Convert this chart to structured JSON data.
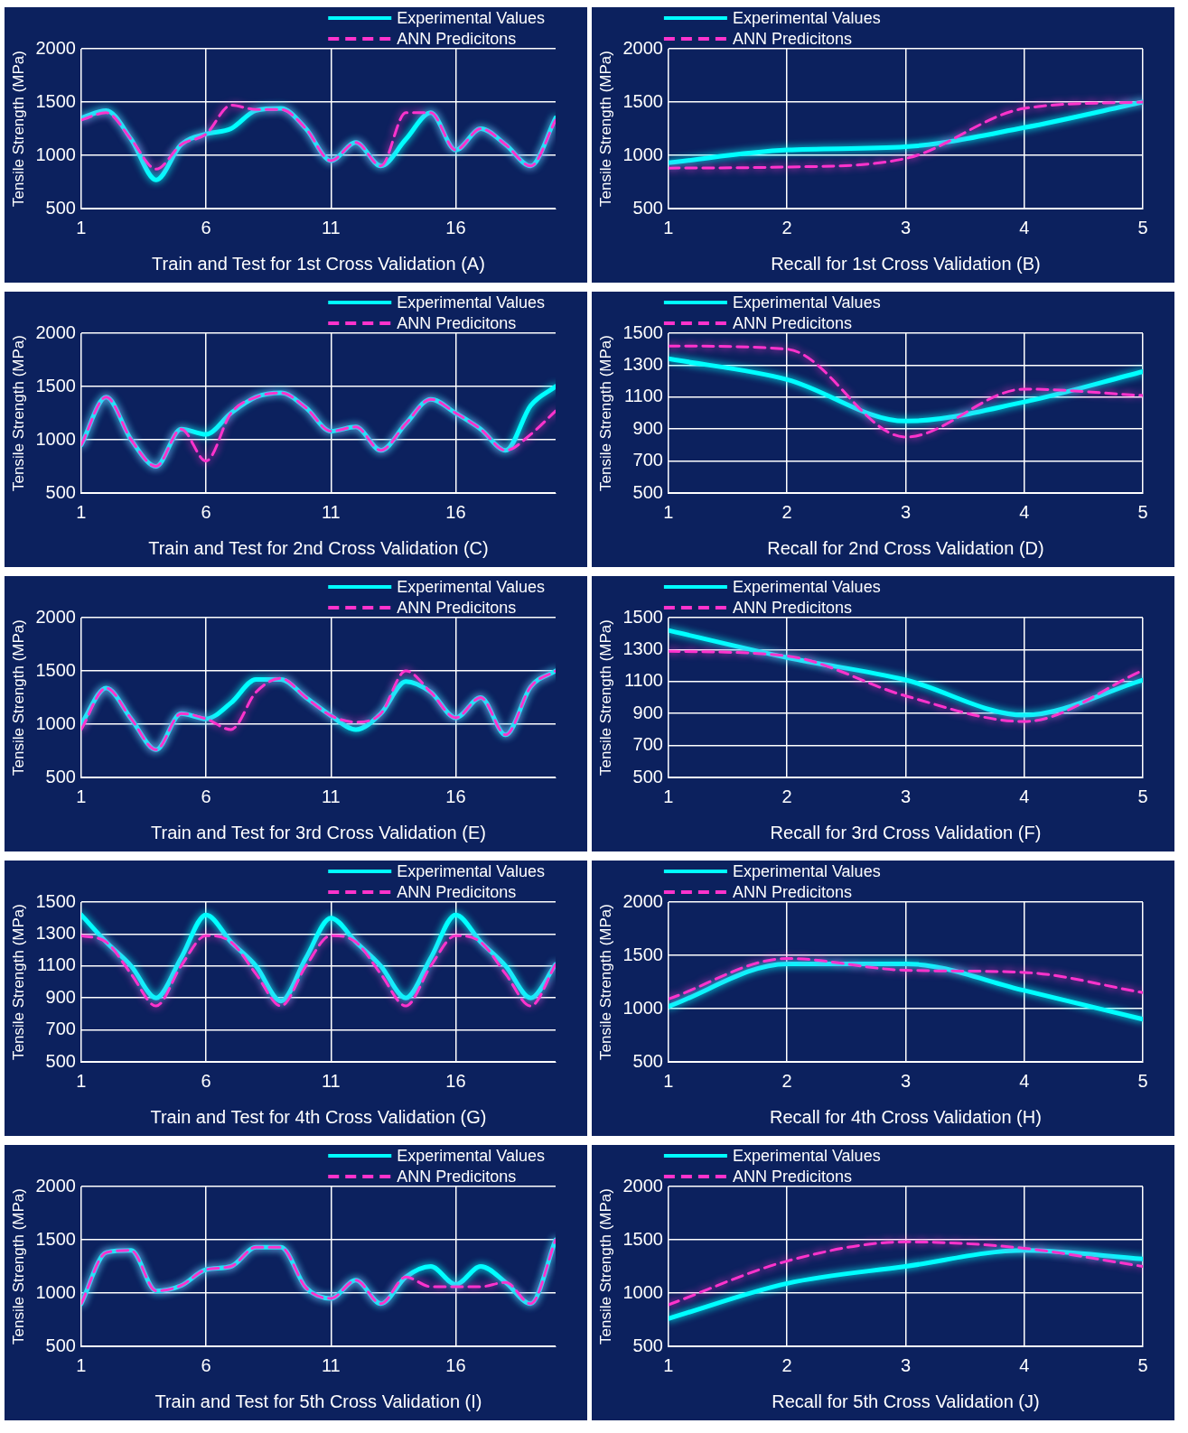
{
  "chart_data": [
    {
      "type": "line",
      "xlabel": "Train and Test for 1st Cross Validation (A)",
      "ylabel": "Tensile Strength (MPa)",
      "x": [
        1,
        2,
        3,
        4,
        5,
        6,
        7,
        8,
        9,
        10,
        11,
        12,
        13,
        14,
        15,
        16,
        17,
        18,
        19,
        20
      ],
      "xlim": [
        1,
        20
      ],
      "xticks": [
        1,
        6,
        11,
        16
      ],
      "ylim": [
        500,
        2000
      ],
      "yticks": [
        500,
        1000,
        1500,
        2000
      ],
      "grid": true,
      "legend": "top right",
      "marker": "none",
      "series": [
        {
          "name": "Experimental Values",
          "color": "#00ffff",
          "line_style": "solid",
          "values": [
            1350,
            1420,
            1150,
            770,
            1100,
            1200,
            1250,
            1420,
            1440,
            1250,
            950,
            1120,
            900,
            1150,
            1400,
            1050,
            1250,
            1100,
            900,
            1350
          ]
        },
        {
          "name": "ANN Predicitons",
          "color": "#ff33cc",
          "line_style": "dashed",
          "values": [
            1330,
            1400,
            1150,
            870,
            1100,
            1200,
            1470,
            1430,
            1430,
            1250,
            950,
            1120,
            900,
            1400,
            1400,
            1050,
            1250,
            1100,
            900,
            1330
          ]
        }
      ]
    },
    {
      "type": "line",
      "xlabel": "Recall for 1st Cross Validation (B)",
      "ylabel": "Tensile Strength (MPa)",
      "x": [
        1,
        2,
        3,
        4,
        5
      ],
      "xlim": [
        1,
        5
      ],
      "xticks": [
        1,
        2,
        3,
        4,
        5
      ],
      "ylim": [
        500,
        2000
      ],
      "yticks": [
        500,
        1000,
        1500,
        2000
      ],
      "grid": true,
      "legend": "top left",
      "marker": "none",
      "series": [
        {
          "name": "Experimental Values",
          "color": "#00ffff",
          "line_style": "solid",
          "values": [
            930,
            1050,
            1080,
            1260,
            1500
          ]
        },
        {
          "name": "ANN Predicitons",
          "color": "#ff33cc",
          "line_style": "dashed",
          "values": [
            880,
            890,
            970,
            1440,
            1500
          ]
        }
      ]
    },
    {
      "type": "line",
      "xlabel": "Train and Test for 2nd Cross Validation (C)",
      "ylabel": "Tensile Strength (MPa)",
      "x": [
        1,
        2,
        3,
        4,
        5,
        6,
        7,
        8,
        9,
        10,
        11,
        12,
        13,
        14,
        15,
        16,
        17,
        18,
        19,
        20
      ],
      "xlim": [
        1,
        20
      ],
      "xticks": [
        1,
        6,
        11,
        16
      ],
      "ylim": [
        500,
        2000
      ],
      "yticks": [
        500,
        1000,
        1500,
        2000
      ],
      "grid": true,
      "legend": "top right",
      "marker": "none",
      "series": [
        {
          "name": "Experimental Values",
          "color": "#00ffff",
          "line_style": "solid",
          "values": [
            950,
            1400,
            1000,
            750,
            1100,
            1050,
            1250,
            1400,
            1440,
            1300,
            1080,
            1120,
            900,
            1150,
            1380,
            1250,
            1100,
            900,
            1320,
            1500
          ]
        },
        {
          "name": "ANN Predicitons",
          "color": "#ff33cc",
          "line_style": "dashed",
          "values": [
            950,
            1400,
            1000,
            750,
            1100,
            800,
            1250,
            1400,
            1440,
            1300,
            1080,
            1120,
            900,
            1150,
            1380,
            1250,
            1100,
            900,
            1050,
            1270
          ]
        }
      ]
    },
    {
      "type": "line",
      "xlabel": "Recall for 2nd Cross Validation (D)",
      "ylabel": "Tensile Strength (MPa)",
      "x": [
        1,
        2,
        3,
        4,
        5
      ],
      "xlim": [
        1,
        5
      ],
      "xticks": [
        1,
        2,
        3,
        4,
        5
      ],
      "ylim": [
        500,
        1500
      ],
      "yticks": [
        500,
        700,
        900,
        1100,
        1300,
        1500
      ],
      "grid": true,
      "legend": "top left",
      "marker": "none",
      "series": [
        {
          "name": "Experimental Values",
          "color": "#00ffff",
          "line_style": "solid",
          "values": [
            1340,
            1210,
            950,
            1070,
            1260
          ]
        },
        {
          "name": "ANN Predicitons",
          "color": "#ff33cc",
          "line_style": "dashed",
          "values": [
            1420,
            1400,
            850,
            1150,
            1110
          ]
        }
      ]
    },
    {
      "type": "line",
      "xlabel": "Train and Test for 3rd Cross Validation (E)",
      "ylabel": "Tensile Strength (MPa)",
      "x": [
        1,
        2,
        3,
        4,
        5,
        6,
        7,
        8,
        9,
        10,
        11,
        12,
        13,
        14,
        15,
        16,
        17,
        18,
        19,
        20
      ],
      "xlim": [
        1,
        20
      ],
      "xticks": [
        1,
        6,
        11,
        16
      ],
      "ylim": [
        500,
        2000
      ],
      "yticks": [
        500,
        1000,
        1500,
        2000
      ],
      "grid": true,
      "legend": "top right",
      "marker": "none",
      "series": [
        {
          "name": "Experimental Values",
          "color": "#00ffff",
          "line_style": "solid",
          "values": [
            1000,
            1340,
            1050,
            760,
            1100,
            1050,
            1200,
            1420,
            1420,
            1250,
            1080,
            950,
            1100,
            1400,
            1300,
            1060,
            1250,
            900,
            1350,
            1500
          ]
        },
        {
          "name": "ANN Predicitons",
          "color": "#ff33cc",
          "line_style": "dashed",
          "values": [
            950,
            1340,
            1050,
            760,
            1100,
            1050,
            950,
            1300,
            1430,
            1250,
            1080,
            1020,
            1100,
            1500,
            1300,
            1060,
            1250,
            900,
            1350,
            1500
          ]
        }
      ]
    },
    {
      "type": "line",
      "xlabel": "Recall for 3rd Cross Validation (F)",
      "ylabel": "Tensile Strength (MPa)",
      "x": [
        1,
        2,
        3,
        4,
        5
      ],
      "xlim": [
        1,
        5
      ],
      "xticks": [
        1,
        2,
        3,
        4,
        5
      ],
      "ylim": [
        500,
        1500
      ],
      "yticks": [
        500,
        700,
        900,
        1100,
        1300,
        1500
      ],
      "grid": true,
      "legend": "top left",
      "marker": "none",
      "series": [
        {
          "name": "Experimental Values",
          "color": "#00ffff",
          "line_style": "solid",
          "values": [
            1420,
            1250,
            1110,
            890,
            1110
          ]
        },
        {
          "name": "ANN Predicitons",
          "color": "#ff33cc",
          "line_style": "dashed",
          "values": [
            1290,
            1260,
            1010,
            850,
            1170
          ]
        }
      ]
    },
    {
      "type": "line",
      "xlabel": "Train and Test for 4th Cross Validation (G)",
      "ylabel": "Tensile Strength (MPa)",
      "x": [
        1,
        2,
        3,
        4,
        5,
        6,
        7,
        8,
        9,
        10,
        11,
        12,
        13,
        14,
        15,
        16,
        17,
        18,
        19,
        20
      ],
      "xlim": [
        1,
        20
      ],
      "xticks": [
        1,
        6,
        11,
        16
      ],
      "ylim": [
        500,
        1500
      ],
      "yticks": [
        500,
        700,
        900,
        1100,
        1300,
        1500
      ],
      "grid": true,
      "legend": "top right",
      "marker": "none",
      "series": [
        {
          "name": "Experimental Values",
          "color": "#00ffff",
          "line_style": "solid",
          "values": [
            1420,
            1250,
            1100,
            900,
            1150,
            1420,
            1250,
            1100,
            880,
            1150,
            1400,
            1250,
            1100,
            900,
            1150,
            1420,
            1250,
            1100,
            900,
            1110
          ]
        },
        {
          "name": "ANN Predicitons",
          "color": "#ff33cc",
          "line_style": "dashed",
          "values": [
            1290,
            1250,
            1050,
            850,
            1100,
            1290,
            1250,
            1050,
            850,
            1100,
            1290,
            1250,
            1050,
            850,
            1100,
            1290,
            1250,
            1050,
            850,
            1110
          ]
        }
      ]
    },
    {
      "type": "line",
      "xlabel": "Recall for 4th Cross Validation (H)",
      "ylabel": "Tensile Strength (MPa)",
      "x": [
        1,
        2,
        3,
        4,
        5
      ],
      "xlim": [
        1,
        5
      ],
      "xticks": [
        1,
        2,
        3,
        4,
        5
      ],
      "ylim": [
        500,
        2000
      ],
      "yticks": [
        500,
        1000,
        1500,
        2000
      ],
      "grid": true,
      "legend": "top left",
      "marker": "none",
      "series": [
        {
          "name": "Experimental Values",
          "color": "#00ffff",
          "line_style": "solid",
          "values": [
            1020,
            1420,
            1420,
            1170,
            900
          ]
        },
        {
          "name": "ANN Predicitons",
          "color": "#ff33cc",
          "line_style": "dashed",
          "values": [
            1090,
            1470,
            1360,
            1340,
            1150
          ]
        }
      ]
    },
    {
      "type": "line",
      "xlabel": "Train and Test for 5th Cross Validation (I)",
      "ylabel": "Tensile Strength (MPa)",
      "x": [
        1,
        2,
        3,
        4,
        5,
        6,
        7,
        8,
        9,
        10,
        11,
        12,
        13,
        14,
        15,
        16,
        17,
        18,
        19,
        20
      ],
      "xlim": [
        1,
        20
      ],
      "xticks": [
        1,
        6,
        11,
        16
      ],
      "ylim": [
        500,
        2000
      ],
      "yticks": [
        500,
        1000,
        1500,
        2000
      ],
      "grid": true,
      "legend": "top right",
      "marker": "none",
      "series": [
        {
          "name": "Experimental Values",
          "color": "#00ffff",
          "line_style": "solid",
          "values": [
            900,
            1380,
            1400,
            1020,
            1070,
            1220,
            1250,
            1430,
            1430,
            1050,
            950,
            1120,
            900,
            1150,
            1250,
            1080,
            1250,
            1100,
            900,
            1500
          ]
        },
        {
          "name": "ANN Predicitons",
          "color": "#ff33cc",
          "line_style": "dashed",
          "values": [
            900,
            1380,
            1400,
            1020,
            1070,
            1220,
            1250,
            1430,
            1430,
            1050,
            950,
            1120,
            900,
            1150,
            1060,
            1060,
            1060,
            1100,
            900,
            1500
          ]
        }
      ]
    },
    {
      "type": "line",
      "xlabel": "Recall for 5th Cross Validation (J)",
      "ylabel": "Tensile Strength (MPa)",
      "x": [
        1,
        2,
        3,
        4,
        5
      ],
      "xlim": [
        1,
        5
      ],
      "xticks": [
        1,
        2,
        3,
        4,
        5
      ],
      "ylim": [
        500,
        2000
      ],
      "yticks": [
        500,
        1000,
        1500,
        2000
      ],
      "grid": true,
      "legend": "top left",
      "marker": "none",
      "series": [
        {
          "name": "Experimental Values",
          "color": "#00ffff",
          "line_style": "solid",
          "values": [
            760,
            1090,
            1250,
            1400,
            1320
          ]
        },
        {
          "name": "ANN Predicitons",
          "color": "#ff33cc",
          "line_style": "dashed",
          "values": [
            890,
            1300,
            1480,
            1420,
            1250
          ]
        }
      ]
    }
  ]
}
